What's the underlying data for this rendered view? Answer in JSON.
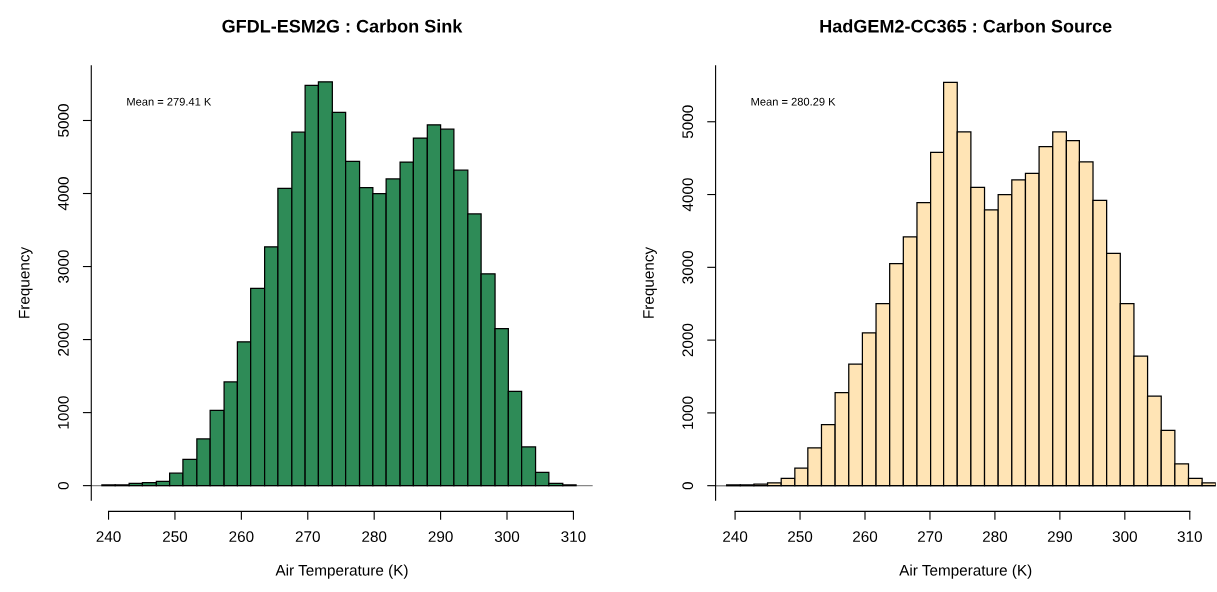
{
  "chart_data": [
    {
      "type": "histogram",
      "title": "GFDL-ESM2G : Carbon Sink",
      "xlabel": "Air Temperature (K)",
      "ylabel": "Frequency",
      "annotations": [
        "Mean = 279.41 K"
      ],
      "bins": [
        239.0,
        241.0,
        243.1,
        245.1,
        247.2,
        249.2,
        251.2,
        253.3,
        255.3,
        257.4,
        259.4,
        261.4,
        263.5,
        265.5,
        267.6,
        269.6,
        271.6,
        273.7,
        275.7,
        277.8,
        279.8,
        281.8,
        283.9,
        285.9,
        288.0,
        290.0,
        292.0,
        294.1,
        296.1,
        298.2,
        300.2,
        302.2,
        304.3,
        306.3,
        308.4,
        310.4
      ],
      "values": [
        10,
        10,
        30,
        40,
        60,
        170,
        360,
        640,
        1030,
        1420,
        1970,
        2700,
        3270,
        4070,
        4840,
        5480,
        5530,
        5110,
        4440,
        4080,
        4000,
        4200,
        4430,
        4760,
        4940,
        4880,
        4320,
        3720,
        2900,
        2150,
        1290,
        530,
        180,
        30,
        10
      ],
      "color": "#2e8b57",
      "xlim": [
        237.4,
        312.9
      ],
      "ylim": [
        -200,
        5750
      ],
      "xticks": [
        240,
        250,
        260,
        270,
        280,
        290,
        300,
        310
      ],
      "yticks": [
        0,
        1000,
        2000,
        3000,
        4000,
        5000
      ],
      "grid": false,
      "ref_lines": [
        {
          "axis": "y",
          "value": 0,
          "color": "#888888"
        }
      ]
    },
    {
      "type": "histogram",
      "title": "HadGEM2-CC365 : Carbon Source",
      "xlabel": "Air Temperature (K)",
      "ylabel": "Frequency",
      "annotations": [
        "Mean = 280.29 K"
      ],
      "bins": [
        238.7,
        240.8,
        242.9,
        245.0,
        247.1,
        249.2,
        251.2,
        253.3,
        255.4,
        257.5,
        259.6,
        261.7,
        263.8,
        265.9,
        268.0,
        270.1,
        272.1,
        274.2,
        276.3,
        278.4,
        280.5,
        282.6,
        284.7,
        286.8,
        288.9,
        291.0,
        293.0,
        295.1,
        297.2,
        299.3,
        301.4,
        303.5,
        305.6,
        307.7,
        309.8,
        311.9,
        314.0
      ],
      "values": [
        10,
        10,
        20,
        40,
        100,
        240,
        520,
        840,
        1280,
        1670,
        2100,
        2500,
        3050,
        3420,
        3890,
        4580,
        5540,
        4860,
        4100,
        3790,
        4000,
        4200,
        4290,
        4660,
        4860,
        4740,
        4450,
        3920,
        3190,
        2500,
        1780,
        1230,
        760,
        300,
        100,
        40
      ],
      "color": "#ffe4b5",
      "xlim": [
        237.0,
        314.0
      ],
      "ylim": [
        -200,
        5770
      ],
      "xticks": [
        240,
        250,
        260,
        270,
        280,
        290,
        300,
        310
      ],
      "yticks": [
        0,
        1000,
        2000,
        3000,
        4000,
        5000
      ],
      "grid": false,
      "ref_lines": [
        {
          "axis": "y",
          "value": 0,
          "color": "#888888"
        }
      ]
    }
  ]
}
